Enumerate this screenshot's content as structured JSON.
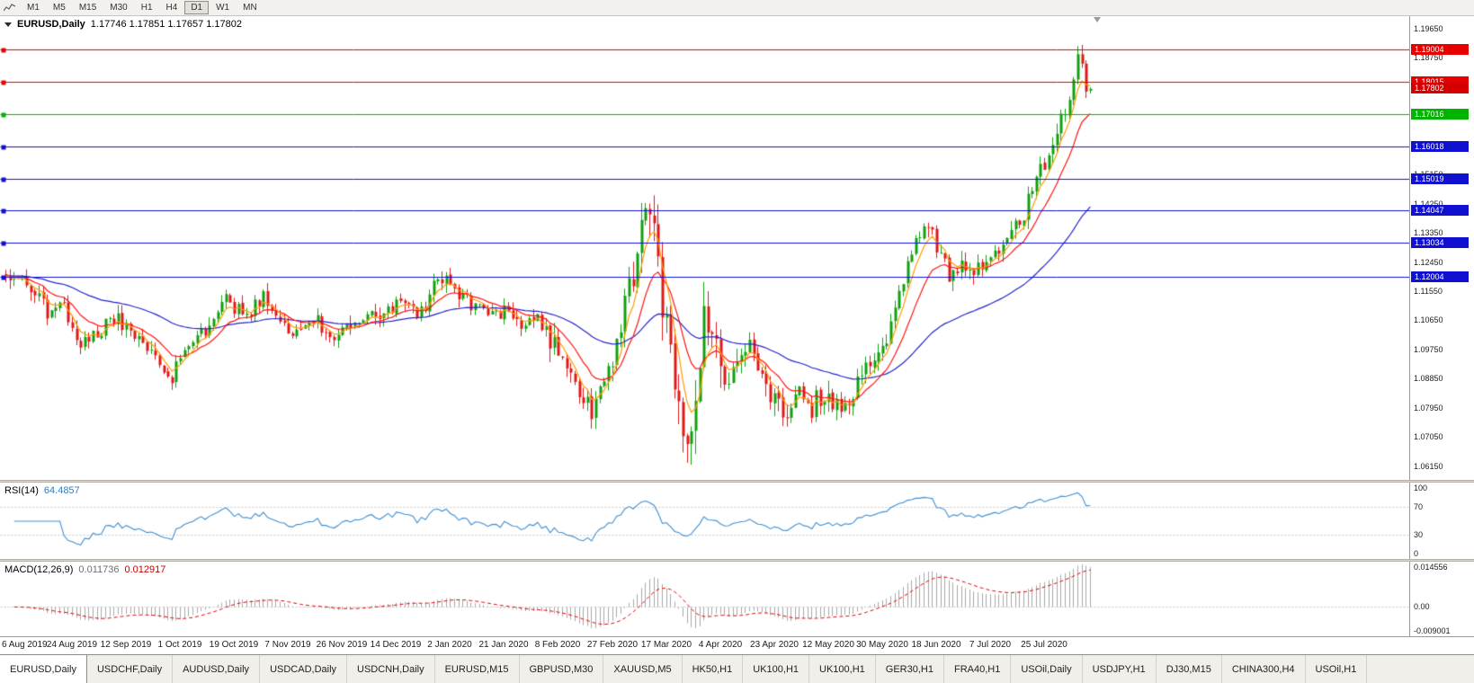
{
  "toolbar": {
    "timeframes": [
      "M1",
      "M5",
      "M15",
      "M30",
      "H1",
      "H4",
      "D1",
      "W1",
      "MN"
    ],
    "active_timeframe": "D1"
  },
  "chart": {
    "title": "EURUSD,Daily",
    "ohlc_text": "1.17746 1.17851 1.17657 1.17802"
  },
  "chart_data": {
    "type": "candlestick",
    "symbol": "EURUSD",
    "period": "Daily",
    "last_quote": {
      "open": "1.17746",
      "high": "1.17851",
      "low": "1.17657",
      "close": "1.17802"
    },
    "candle_count": 262,
    "candles_per_label": 13,
    "x_labels": [
      "6 Aug 2019",
      "24 Aug 2019",
      "12 Sep 2019",
      "1 Oct 2019",
      "19 Oct 2019",
      "7 Nov 2019",
      "26 Nov 2019",
      "14 Dec 2019",
      "2 Jan 2020",
      "21 Jan 2020",
      "8 Feb 2020",
      "27 Feb 2020",
      "17 Mar 2020",
      "4 Apr 2020",
      "23 Apr 2020",
      "12 May 2020",
      "30 May 2020",
      "18 Jun 2020",
      "7 Jul 2020",
      "25 Jul 2020"
    ],
    "y_axis": {
      "top": 1.2003,
      "bottom": 1.0573,
      "ticks": [
        "1.19650",
        "1.18750",
        "1.17850",
        "1.16950",
        "1.16050",
        "1.15150",
        "1.14250",
        "1.13350",
        "1.12450",
        "1.11550",
        "1.10650",
        "1.09750",
        "1.08850",
        "1.07950",
        "1.07050",
        "1.06150"
      ]
    },
    "levels": [
      {
        "price": 1.19004,
        "label": "1.19004",
        "color": "#e60000"
      },
      {
        "price": 1.18015,
        "label": "1.18015",
        "color": "#e60000"
      },
      {
        "price": 1.17802,
        "label": "1.17802",
        "color": "#d40000",
        "current": true
      },
      {
        "price": 1.17016,
        "label": "1.17016",
        "color": "#00b400"
      },
      {
        "price": 1.16018,
        "label": "1.16018",
        "color": "#1010d0"
      },
      {
        "price": 1.15019,
        "label": "1.15019",
        "color": "#1010d0"
      },
      {
        "price": 1.14047,
        "label": "1.14047",
        "color": "#1010d0"
      },
      {
        "price": 1.13034,
        "label": "1.13034",
        "color": "#1010d0"
      },
      {
        "price": 1.12004,
        "label": "1.12004",
        "color": "#1010d0"
      }
    ],
    "candle_colors": {
      "up": "#10a010",
      "down": "#e01818"
    },
    "moving_averages": [
      {
        "name": "ma-fast",
        "period": 5,
        "color": "#ff9c00"
      },
      {
        "name": "ma-mid",
        "period": 13,
        "color": "#ff1414"
      },
      {
        "name": "ma-slow",
        "period": 50,
        "color": "#2323cc"
      }
    ],
    "price_path_anchors": [
      [
        0,
        1.1205
      ],
      [
        6,
        1.117
      ],
      [
        10,
        1.109
      ],
      [
        14,
        1.1105
      ],
      [
        18,
        1.0995
      ],
      [
        22,
        1.1035
      ],
      [
        27,
        1.107
      ],
      [
        32,
        1.1015
      ],
      [
        36,
        1.096
      ],
      [
        40,
        1.0895
      ],
      [
        44,
        1.0985
      ],
      [
        48,
        1.104
      ],
      [
        53,
        1.1125
      ],
      [
        58,
        1.108
      ],
      [
        62,
        1.115
      ],
      [
        66,
        1.107
      ],
      [
        70,
        1.1015
      ],
      [
        75,
        1.106
      ],
      [
        80,
        1.102
      ],
      [
        85,
        1.1065
      ],
      [
        90,
        1.108
      ],
      [
        95,
        1.1115
      ],
      [
        100,
        1.109
      ],
      [
        104,
        1.12
      ],
      [
        108,
        1.116
      ],
      [
        112,
        1.1115
      ],
      [
        116,
        1.1095
      ],
      [
        120,
        1.1095
      ],
      [
        124,
        1.106
      ],
      [
        128,
        1.1075
      ],
      [
        132,
        1.1
      ],
      [
        136,
        1.092
      ],
      [
        140,
        1.08
      ],
      [
        142,
        1.0785
      ],
      [
        146,
        1.096
      ],
      [
        150,
        1.1135
      ],
      [
        152,
        1.128
      ],
      [
        154,
        1.144
      ],
      [
        156,
        1.13
      ],
      [
        158,
        1.114
      ],
      [
        160,
        1.1
      ],
      [
        162,
        1.083
      ],
      [
        164,
        1.066
      ],
      [
        166,
        1.079
      ],
      [
        168,
        1.106
      ],
      [
        170,
        1.103
      ],
      [
        173,
        1.088
      ],
      [
        176,
        1.091
      ],
      [
        179,
        1.0975
      ],
      [
        182,
        1.087
      ],
      [
        185,
        1.082
      ],
      [
        188,
        1.0755
      ],
      [
        191,
        1.084
      ],
      [
        194,
        1.08
      ],
      [
        197,
        1.0845
      ],
      [
        200,
        1.08
      ],
      [
        203,
        1.0815
      ],
      [
        206,
        1.09
      ],
      [
        209,
        1.0955
      ],
      [
        212,
        1.101
      ],
      [
        215,
        1.1135
      ],
      [
        218,
        1.129
      ],
      [
        221,
        1.138
      ],
      [
        224,
        1.13
      ],
      [
        227,
        1.1205
      ],
      [
        230,
        1.124
      ],
      [
        233,
        1.121
      ],
      [
        236,
        1.1245
      ],
      [
        239,
        1.127
      ],
      [
        242,
        1.133
      ],
      [
        245,
        1.14
      ],
      [
        248,
        1.151
      ],
      [
        251,
        1.158
      ],
      [
        253,
        1.165
      ],
      [
        255,
        1.172
      ],
      [
        261,
        1.178
      ]
    ],
    "final_candles": [
      [
        1.1698,
        1.1757,
        1.1679,
        1.1746
      ],
      [
        1.1746,
        1.1817,
        1.1731,
        1.1809
      ],
      [
        1.1809,
        1.1912,
        1.1794,
        1.1887
      ],
      [
        1.1887,
        1.1916,
        1.1845,
        1.1858
      ],
      [
        1.1858,
        1.1868,
        1.1752,
        1.1772
      ],
      [
        1.17746,
        1.17851,
        1.17657,
        1.17802
      ]
    ],
    "indicators": {
      "rsi": {
        "name": "RSI(14)",
        "value": "64.4857",
        "line_color": "#3e8ed0",
        "levels": [
          70,
          30
        ],
        "axis_ticks": [
          "100",
          "70",
          "30",
          "0"
        ]
      },
      "macd": {
        "name": "MACD(12,26,9)",
        "main_value": "0.011736",
        "signal_value": "0.012917",
        "hist_color": "#a8a8a8",
        "signal_color": "#e60000",
        "max": 0.014556,
        "min": -0.009001,
        "axis_ticks": [
          "0.014556",
          "0.00",
          "-0.009001"
        ]
      }
    },
    "icons": {
      "toolbar_chart": "line-chart-glyph",
      "one_click_trading": "triangle-down",
      "shift_marker": "triangle-down"
    }
  },
  "tabs": [
    {
      "label": "EURUSD,Daily",
      "active": true
    },
    {
      "label": "USDCHF,Daily"
    },
    {
      "label": "AUDUSD,Daily"
    },
    {
      "label": "USDCAD,Daily"
    },
    {
      "label": "USDCNH,Daily"
    },
    {
      "label": "EURUSD,M15"
    },
    {
      "label": "GBPUSD,M30"
    },
    {
      "label": "XAUUSD,M5"
    },
    {
      "label": "HK50,H1"
    },
    {
      "label": "UK100,H1"
    },
    {
      "label": "UK100,H1"
    },
    {
      "label": "GER30,H1"
    },
    {
      "label": "FRA40,H1"
    },
    {
      "label": "USOil,Daily"
    },
    {
      "label": "USDJPY,H1"
    },
    {
      "label": "DJ30,M15"
    },
    {
      "label": "CHINA300,H4"
    },
    {
      "label": "USOil,H1"
    }
  ]
}
